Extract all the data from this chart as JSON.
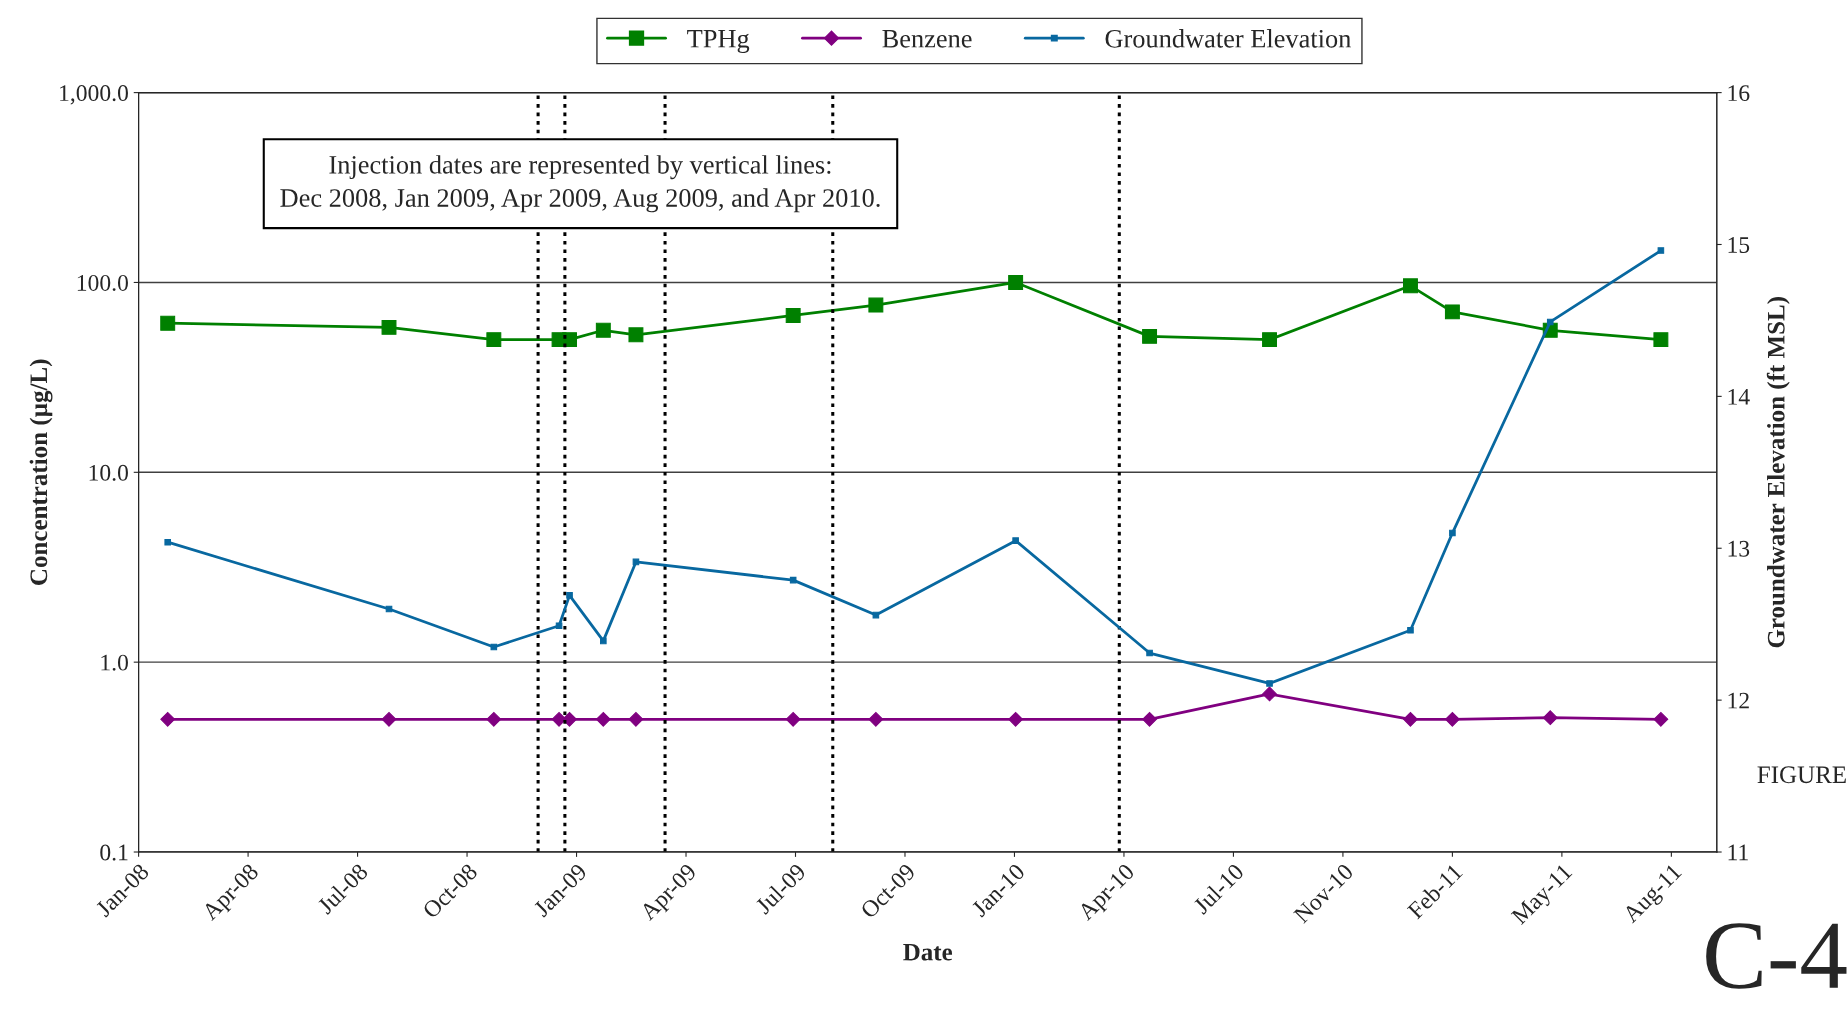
{
  "chart_data": {
    "type": "line",
    "xlabel": "Date",
    "ylabel": "Concentration (µg/L)",
    "y2label": "Groundwater Elevation (ft MSL)",
    "x": [
      "2008-01-27",
      "2008-08-04",
      "2008-11-02",
      "2008-12-28",
      "2009-01-06",
      "2009-02-04",
      "2009-03-04",
      "2009-07-17",
      "2009-09-26",
      "2010-01-24",
      "2010-05-19",
      "2010-08-30",
      "2010-12-29",
      "2011-02-03",
      "2011-04-28",
      "2011-08-01"
    ],
    "series": [
      {
        "name": "TPHg",
        "color": "#008000",
        "marker": "square",
        "values": [
          61,
          58,
          50,
          50,
          50,
          56,
          53,
          67,
          76,
          100,
          52,
          50,
          96,
          70,
          56,
          50
        ]
      },
      {
        "name": "Benzene",
        "color": "#800080",
        "marker": "diamond",
        "values": [
          0.5,
          0.5,
          0.5,
          0.5,
          0.5,
          0.5,
          0.5,
          0.5,
          0.5,
          0.5,
          0.5,
          0.68,
          0.5,
          0.5,
          0.51,
          0.5
        ]
      },
      {
        "name": "Groundwater Elevation",
        "color": "#0868a0",
        "marker": "square",
        "axis": "y2",
        "values": [
          13.04,
          12.6,
          12.35,
          12.49,
          12.69,
          12.39,
          12.91,
          12.79,
          12.56,
          13.05,
          12.31,
          12.11,
          12.46,
          13.1,
          14.49,
          14.96
        ]
      }
    ],
    "log": "y",
    "ylim": [
      0.1,
      1000
    ],
    "yticks": [
      {
        "value": 0.1,
        "label": "0.1"
      },
      {
        "value": 1,
        "label": "1.0"
      },
      {
        "value": 10,
        "label": "10.0"
      },
      {
        "value": 100,
        "label": "100.0"
      },
      {
        "value": 1000,
        "label": "1,000.0"
      }
    ],
    "y2lim": [
      11,
      16
    ],
    "y2ticks": [
      11,
      12,
      13,
      14,
      15,
      16
    ],
    "xlim": [
      "2008-01-02",
      "2011-09-18"
    ],
    "xticks": [
      {
        "value": "2008-01-02",
        "label": "Jan-08"
      },
      {
        "value": "2008-04-05",
        "label": "Apr-08"
      },
      {
        "value": "2008-07-08",
        "label": "Jul-08"
      },
      {
        "value": "2008-10-10",
        "label": "Oct-08"
      },
      {
        "value": "2009-01-12",
        "label": "Jan-09"
      },
      {
        "value": "2009-04-16",
        "label": "Apr-09"
      },
      {
        "value": "2009-07-19",
        "label": "Jul-09"
      },
      {
        "value": "2009-10-21",
        "label": "Oct-09"
      },
      {
        "value": "2010-01-23",
        "label": "Jan-10"
      },
      {
        "value": "2010-04-27",
        "label": "Apr-10"
      },
      {
        "value": "2010-07-30",
        "label": "Jul-10"
      },
      {
        "value": "2010-11-01",
        "label": "Nov-10"
      },
      {
        "value": "2011-02-03",
        "label": "Feb-11"
      },
      {
        "value": "2011-05-08",
        "label": "May-11"
      },
      {
        "value": "2011-08-10",
        "label": "Aug-11"
      }
    ],
    "ref_lines": [
      {
        "axis": "x",
        "value": "2008-12-10",
        "color": "#000000",
        "line_style": "dotted"
      },
      {
        "axis": "x",
        "value": "2009-01-02",
        "color": "#000000",
        "line_style": "dotted"
      },
      {
        "axis": "x",
        "value": "2009-03-29",
        "color": "#000000",
        "line_style": "dotted"
      },
      {
        "axis": "x",
        "value": "2009-08-20",
        "color": "#000000",
        "line_style": "dotted"
      },
      {
        "axis": "x",
        "value": "2010-04-23",
        "color": "#000000",
        "line_style": "dotted"
      }
    ],
    "grid": "y",
    "legend": "top",
    "line_style": "solid",
    "annotations": [
      "Injection dates are represented by vertical lines:\nDec 2008, Jan 2009, Apr 2009, Aug 2009, and Apr 2010.",
      "FIGURE",
      "C-4"
    ]
  }
}
